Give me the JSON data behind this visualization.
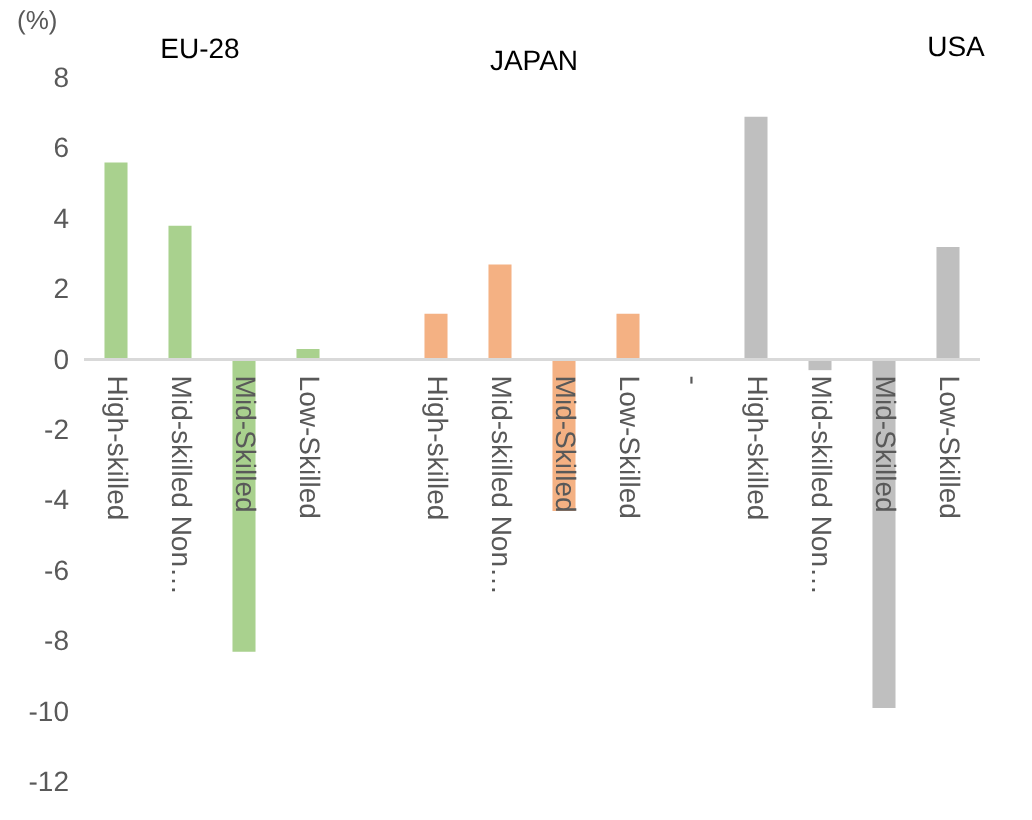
{
  "chart_data": {
    "type": "bar",
    "ylabel": "(%)",
    "categories": [
      "High-skilled",
      "Mid-skilled Non…",
      "Mid-Skilled",
      "Low-Skilled",
      null,
      "High-skilled",
      "Mid-skilled Non…",
      "Mid-Skilled",
      "Low-Skilled",
      "-",
      "High-skilled",
      "Mid-skilled Non…",
      "Mid-Skilled",
      "Low-Skilled"
    ],
    "values": [
      5.6,
      3.8,
      -8.3,
      0.3,
      null,
      1.3,
      2.7,
      -4.3,
      1.3,
      null,
      6.9,
      -0.3,
      -9.9,
      3.2
    ],
    "colors": [
      "#a9d18e",
      "#a9d18e",
      "#a9d18e",
      "#a9d18e",
      null,
      "#f4b183",
      "#f4b183",
      "#f4b183",
      "#f4b183",
      null,
      "#bfbfbf",
      "#bfbfbf",
      "#bfbfbf",
      "#bfbfbf"
    ],
    "annotations": [
      "EU-28",
      "JAPAN",
      "USA"
    ],
    "ylim": [
      -12,
      8
    ],
    "yticks": [
      -12,
      -10,
      -8,
      -6,
      -4,
      -2,
      0,
      2,
      4,
      6,
      8
    ],
    "grid": false
  }
}
